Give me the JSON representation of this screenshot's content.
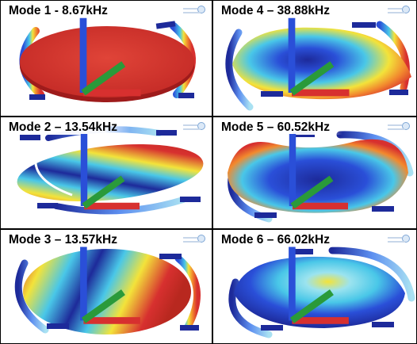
{
  "modes": [
    {
      "title": "Mode 1 - 8.67kHz"
    },
    {
      "title": "Mode 4 – 38.88kHz"
    },
    {
      "title": "Mode 2 – 13.54kHz"
    },
    {
      "title": "Mode 5 – 60.52kHz"
    },
    {
      "title": "Mode 3 – 13.57kHz"
    },
    {
      "title": "Mode 6 – 66.02kHz"
    }
  ],
  "colors": {
    "red": "#d7302f",
    "dark_red": "#9e1b1b",
    "orange": "#f28a2e",
    "yellow": "#f3e33a",
    "cyan": "#49c7e8",
    "blue": "#2a4fd8",
    "dark_blue": "#1d2a9a",
    "divider": "#000000"
  }
}
